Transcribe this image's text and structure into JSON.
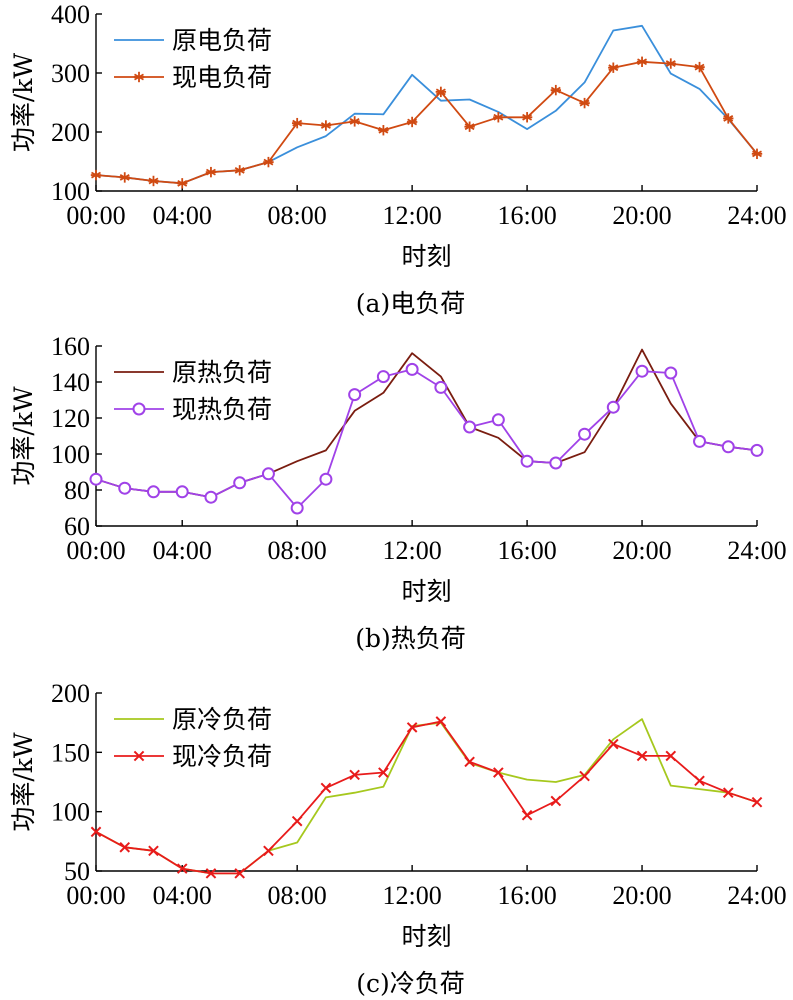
{
  "chart_data": [
    {
      "type": "line",
      "caption": "(a)电负荷",
      "xlabel": "时刻",
      "ylabel": "功率/kW",
      "xlim": [
        1,
        24
      ],
      "ylim": [
        100,
        400
      ],
      "xticks": [
        1,
        4,
        8,
        12,
        16,
        20,
        24
      ],
      "xtick_labels": [
        "00:00",
        "04:00",
        "08:00",
        "12:00",
        "16:00",
        "20:00",
        "24:00"
      ],
      "yticks": [
        100,
        200,
        300,
        400
      ],
      "ytick_labels": [
        "100",
        "200",
        "300",
        "400"
      ],
      "legend_position": "top-left",
      "x": [
        1,
        2,
        3,
        4,
        5,
        6,
        7,
        8,
        9,
        10,
        11,
        12,
        13,
        14,
        15,
        16,
        17,
        18,
        19,
        20,
        21,
        22,
        23,
        24
      ],
      "series": [
        {
          "name": "原电负荷",
          "color": "#3a8fdb",
          "marker": "none",
          "values": [
            127,
            123,
            117,
            113,
            132,
            135,
            149,
            174,
            193,
            231,
            230,
            297,
            253,
            255,
            234,
            205,
            236,
            284,
            372,
            380,
            299,
            273,
            222,
            163
          ]
        },
        {
          "name": "现电负荷",
          "color": "#d04a12",
          "marker": "asterisk",
          "values": [
            127,
            123,
            117,
            113,
            132,
            135,
            149,
            215,
            211,
            218,
            203,
            217,
            268,
            209,
            225,
            225,
            271,
            249,
            309,
            319,
            316,
            310,
            223,
            163
          ]
        }
      ]
    },
    {
      "type": "line",
      "caption": "(b)热负荷",
      "xlabel": "时刻",
      "ylabel": "功率/kW",
      "xlim": [
        1,
        24
      ],
      "ylim": [
        60,
        160
      ],
      "xticks": [
        1,
        4,
        8,
        12,
        16,
        20,
        24
      ],
      "xtick_labels": [
        "00:00",
        "04:00",
        "08:00",
        "12:00",
        "16:00",
        "20:00",
        "24:00"
      ],
      "yticks": [
        60,
        80,
        100,
        120,
        140,
        160
      ],
      "ytick_labels": [
        "60",
        "80",
        "100",
        "120",
        "140",
        "160"
      ],
      "legend_position": "top-left",
      "x": [
        1,
        2,
        3,
        4,
        5,
        6,
        7,
        8,
        9,
        10,
        11,
        12,
        13,
        14,
        15,
        16,
        17,
        18,
        19,
        20,
        21,
        22,
        23,
        24
      ],
      "series": [
        {
          "name": "原热负荷",
          "color": "#7a1d10",
          "marker": "none",
          "values": [
            86,
            81,
            79,
            79,
            76,
            84,
            89,
            96,
            102,
            124,
            134,
            156,
            143,
            115,
            109,
            96,
            95,
            101,
            126,
            158,
            128,
            107,
            104,
            102
          ]
        },
        {
          "name": "现热负荷",
          "color": "#a042e8",
          "marker": "circle",
          "values": [
            86,
            81,
            79,
            79,
            76,
            84,
            89,
            70,
            86,
            133,
            143,
            147,
            137,
            115,
            119,
            96,
            95,
            111,
            126,
            146,
            145,
            107,
            104,
            102
          ]
        }
      ]
    },
    {
      "type": "line",
      "caption": "(c)冷负荷",
      "xlabel": "时刻",
      "ylabel": "功率/kW",
      "xlim": [
        1,
        24
      ],
      "ylim": [
        50,
        200
      ],
      "xticks": [
        1,
        4,
        8,
        12,
        16,
        20,
        24
      ],
      "xtick_labels": [
        "00:00",
        "04:00",
        "08:00",
        "12:00",
        "16:00",
        "20:00",
        "24:00"
      ],
      "yticks": [
        50,
        100,
        150,
        200
      ],
      "ytick_labels": [
        "50",
        "100",
        "150",
        "200"
      ],
      "legend_position": "top-left",
      "x": [
        1,
        2,
        3,
        4,
        5,
        6,
        7,
        8,
        9,
        10,
        11,
        12,
        13,
        14,
        15,
        16,
        17,
        18,
        19,
        20,
        21,
        22,
        23,
        24
      ],
      "series": [
        {
          "name": "原冷负荷",
          "color": "#a6c81e",
          "marker": "none",
          "values": [
            83,
            70,
            67,
            52,
            48,
            48,
            67,
            74,
            112,
            116,
            121,
            172,
            175,
            141,
            133,
            127,
            125,
            131,
            161,
            178,
            122,
            119,
            116,
            108
          ]
        },
        {
          "name": "现冷负荷",
          "color": "#e81b1b",
          "marker": "x",
          "values": [
            83,
            70,
            67,
            52,
            48,
            48,
            67,
            92,
            120,
            131,
            133,
            171,
            176,
            142,
            133,
            97,
            109,
            130,
            157,
            147,
            147,
            126,
            116,
            108
          ]
        }
      ]
    }
  ]
}
